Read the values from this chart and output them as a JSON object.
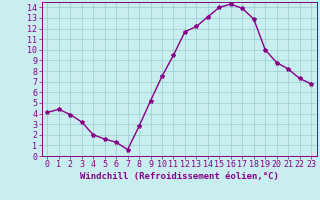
{
  "x": [
    0,
    1,
    2,
    3,
    4,
    5,
    6,
    7,
    8,
    9,
    10,
    11,
    12,
    13,
    14,
    15,
    16,
    17,
    18,
    19,
    20,
    21,
    22,
    23
  ],
  "y": [
    4.1,
    4.4,
    3.9,
    3.2,
    2.0,
    1.6,
    1.3,
    0.6,
    2.8,
    5.2,
    7.5,
    9.5,
    11.7,
    12.2,
    13.1,
    14.0,
    14.3,
    13.9,
    12.9,
    10.0,
    8.8,
    8.2,
    7.3,
    6.8
  ],
  "line_color": "#880088",
  "marker": "*",
  "marker_size": 3,
  "bg_color": "#c8eef0",
  "grid_color": "#99cccc",
  "tick_color": "#880088",
  "label_color": "#880088",
  "xlabel": "Windchill (Refroidissement éolien,°C)",
  "xlim": [
    -0.5,
    23.5
  ],
  "ylim": [
    0,
    14.5
  ],
  "yticks": [
    0,
    1,
    2,
    3,
    4,
    5,
    6,
    7,
    8,
    9,
    10,
    11,
    12,
    13,
    14
  ],
  "xticks": [
    0,
    1,
    2,
    3,
    4,
    5,
    6,
    7,
    8,
    9,
    10,
    11,
    12,
    13,
    14,
    15,
    16,
    17,
    18,
    19,
    20,
    21,
    22,
    23
  ],
  "xlabel_fontsize": 6.5,
  "tick_fontsize": 6.0,
  "linewidth": 1.0
}
